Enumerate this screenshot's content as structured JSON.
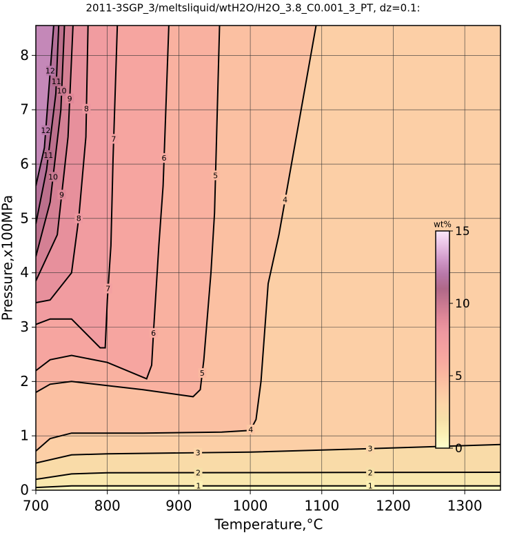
{
  "chart_data": {
    "type": "contour",
    "title": "2011-3SGP_3/meltsliquid/wtH2O/H2O_3.8_C0.001_3_PT, dz=0.1:",
    "x_label": "Temperature,°C",
    "y_label": "Pressure,x100MPa",
    "xlim": [
      700,
      1350
    ],
    "xticks": [
      700,
      800,
      900,
      1000,
      1100,
      1200,
      1300
    ],
    "ylim": [
      0,
      8.55
    ],
    "yticks": [
      0,
      1,
      2,
      3,
      4,
      5,
      6,
      7,
      8
    ],
    "grid": true,
    "line_color": "#000000",
    "colorbar": {
      "label": "wt%",
      "lim": [
        0,
        15
      ],
      "ticks": [
        0,
        5,
        10,
        15
      ],
      "colors": [
        "#ffffcc",
        "#fcf0b4",
        "#f6e0a8",
        "#fcd6a8",
        "#fcc8a4",
        "#fab8a0",
        "#f8aaa0",
        "#f4a0a0",
        "#ee98a0",
        "#e08898",
        "#c87890",
        "#b06888",
        "#b878a8",
        "#d098c8",
        "#e8c0e4",
        "#fae8fa"
      ]
    },
    "contours": [
      {
        "level": 1,
        "x": [
          700,
          750,
          1350
        ],
        "y": [
          0.05,
          0.08,
          0.08
        ]
      },
      {
        "level": 2,
        "x": [
          700,
          750,
          800,
          1350
        ],
        "y": [
          0.2,
          0.3,
          0.32,
          0.33
        ]
      },
      {
        "level": 3,
        "x": [
          700,
          750,
          800,
          1000,
          1130,
          1350
        ],
        "y": [
          0.5,
          0.65,
          0.67,
          0.7,
          0.75,
          0.84
        ]
      },
      {
        "level": 4,
        "x": [
          700,
          720,
          750,
          850,
          960,
          1000,
          1008,
          1015,
          1025,
          1040,
          1092
        ],
        "y": [
          0.72,
          0.95,
          1.05,
          1.05,
          1.07,
          1.1,
          1.3,
          2.0,
          3.8,
          4.7,
          8.55
        ]
      },
      {
        "level": 5,
        "x": [
          700,
          720,
          750,
          850,
          920,
          930,
          935,
          945,
          950,
          957
        ],
        "y": [
          1.8,
          1.95,
          2.0,
          1.85,
          1.72,
          1.85,
          2.4,
          4.0,
          5.1,
          8.55
        ]
      },
      {
        "level": 6,
        "x": [
          700,
          720,
          750,
          800,
          855,
          862,
          865,
          872,
          878,
          886
        ],
        "y": [
          2.2,
          2.4,
          2.48,
          2.35,
          2.05,
          2.3,
          3.0,
          4.5,
          5.6,
          8.55
        ]
      },
      {
        "level": 7,
        "x": [
          700,
          720,
          750,
          790,
          797,
          800,
          805,
          808,
          814
        ],
        "y": [
          3.05,
          3.15,
          3.15,
          2.62,
          2.62,
          3.5,
          4.5,
          6.1,
          8.55
        ]
      },
      {
        "level": 8,
        "x": [
          700,
          720,
          750,
          760,
          770,
          773
        ],
        "y": [
          3.45,
          3.5,
          4.0,
          5.0,
          6.5,
          8.55
        ]
      },
      {
        "level": 9,
        "x": [
          700,
          730,
          745,
          752
        ],
        "y": [
          3.85,
          4.7,
          6.5,
          8.55
        ]
      },
      {
        "level": 10,
        "x": [
          700,
          720,
          735,
          740
        ],
        "y": [
          4.3,
          5.3,
          7.0,
          8.55
        ]
      },
      {
        "level": 11,
        "x": [
          700,
          715,
          728,
          732
        ],
        "y": [
          4.9,
          5.9,
          7.3,
          8.55
        ]
      },
      {
        "level": 12,
        "x": [
          700,
          712,
          725
        ],
        "y": [
          5.6,
          6.3,
          8.55
        ]
      }
    ]
  }
}
